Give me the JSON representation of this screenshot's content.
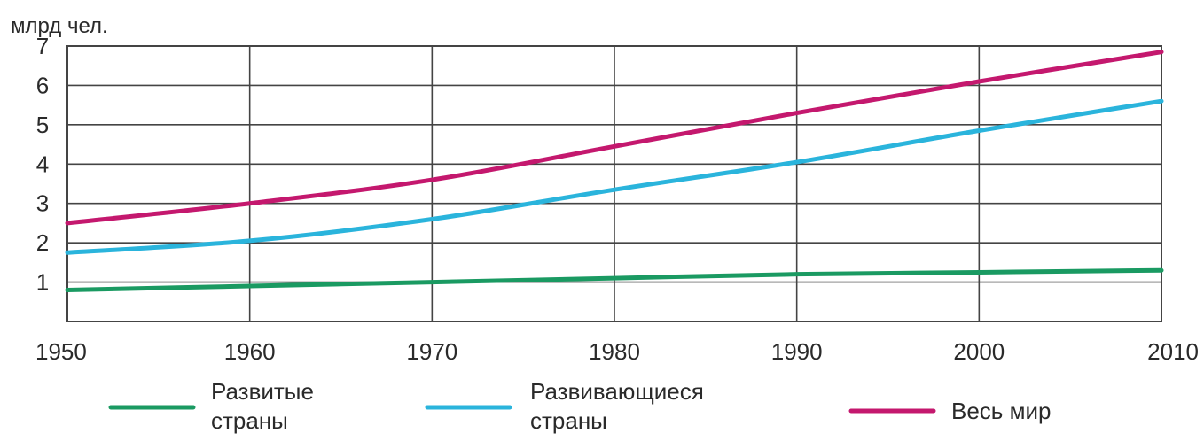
{
  "chart_data": {
    "type": "line",
    "title": "",
    "ylabel": "млрд чел.",
    "xlabel": "",
    "x": [
      1950,
      1960,
      1970,
      1980,
      1990,
      2000,
      2010
    ],
    "xlim": [
      1950,
      2010
    ],
    "ylim": [
      0,
      7
    ],
    "yticks": [
      1,
      2,
      3,
      4,
      5,
      6,
      7
    ],
    "grid": true,
    "legend_position": "bottom",
    "series": [
      {
        "name_lines": [
          "Развитые",
          "страны"
        ],
        "color": "#1a9a62",
        "values": [
          0.8,
          0.9,
          1.0,
          1.1,
          1.2,
          1.25,
          1.3
        ]
      },
      {
        "name_lines": [
          "Развивающиеся",
          "страны"
        ],
        "color": "#2ab4dc",
        "values": [
          1.75,
          2.05,
          2.6,
          3.35,
          4.05,
          4.85,
          5.6
        ]
      },
      {
        "name_lines": [
          "Весь мир"
        ],
        "color": "#c4186e",
        "values": [
          2.5,
          3.0,
          3.6,
          4.45,
          5.3,
          6.1,
          6.85
        ]
      }
    ]
  }
}
